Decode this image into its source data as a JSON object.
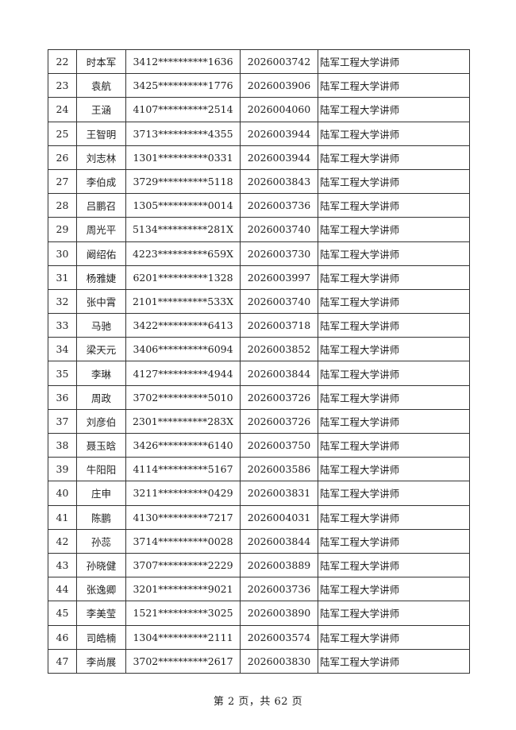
{
  "rows": [
    {
      "no": "22",
      "name": "时本军",
      "id": "3412**********1636",
      "code": "2026003742",
      "position": "陆军工程大学讲师"
    },
    {
      "no": "23",
      "name": "袁航",
      "id": "3425**********1776",
      "code": "2026003906",
      "position": "陆军工程大学讲师"
    },
    {
      "no": "24",
      "name": "王涵",
      "id": "4107**********2514",
      "code": "2026004060",
      "position": "陆军工程大学讲师"
    },
    {
      "no": "25",
      "name": "王智明",
      "id": "3713**********4355",
      "code": "2026003944",
      "position": "陆军工程大学讲师"
    },
    {
      "no": "26",
      "name": "刘志林",
      "id": "1301**********0331",
      "code": "2026003944",
      "position": "陆军工程大学讲师"
    },
    {
      "no": "27",
      "name": "李伯成",
      "id": "3729**********5118",
      "code": "2026003843",
      "position": "陆军工程大学讲师"
    },
    {
      "no": "28",
      "name": "吕鹏召",
      "id": "1305**********0014",
      "code": "2026003736",
      "position": "陆军工程大学讲师"
    },
    {
      "no": "29",
      "name": "周光平",
      "id": "5134**********281X",
      "code": "2026003740",
      "position": "陆军工程大学讲师"
    },
    {
      "no": "30",
      "name": "阚绍佑",
      "id": "4223**********659X",
      "code": "2026003730",
      "position": "陆军工程大学讲师"
    },
    {
      "no": "31",
      "name": "杨雅婕",
      "id": "6201**********1328",
      "code": "2026003997",
      "position": "陆军工程大学讲师"
    },
    {
      "no": "32",
      "name": "张中霄",
      "id": "2101**********533X",
      "code": "2026003740",
      "position": "陆军工程大学讲师"
    },
    {
      "no": "33",
      "name": "马驰",
      "id": "3422**********6413",
      "code": "2026003718",
      "position": "陆军工程大学讲师"
    },
    {
      "no": "34",
      "name": "梁天元",
      "id": "3406**********6094",
      "code": "2026003852",
      "position": "陆军工程大学讲师"
    },
    {
      "no": "35",
      "name": "李琳",
      "id": "4127**********4944",
      "code": "2026003844",
      "position": "陆军工程大学讲师"
    },
    {
      "no": "36",
      "name": "周政",
      "id": "3702**********5010",
      "code": "2026003726",
      "position": "陆军工程大学讲师"
    },
    {
      "no": "37",
      "name": "刘彦伯",
      "id": "2301**********283X",
      "code": "2026003726",
      "position": "陆军工程大学讲师"
    },
    {
      "no": "38",
      "name": "聂玉晗",
      "id": "3426**********6140",
      "code": "2026003750",
      "position": "陆军工程大学讲师"
    },
    {
      "no": "39",
      "name": "牛阳阳",
      "id": "4114**********5167",
      "code": "2026003586",
      "position": "陆军工程大学讲师"
    },
    {
      "no": "40",
      "name": "庄申",
      "id": "3211**********0429",
      "code": "2026003831",
      "position": "陆军工程大学讲师"
    },
    {
      "no": "41",
      "name": "陈鹏",
      "id": "4130**********7217",
      "code": "2026004031",
      "position": "陆军工程大学讲师"
    },
    {
      "no": "42",
      "name": "孙蕊",
      "id": "3714**********0028",
      "code": "2026003844",
      "position": "陆军工程大学讲师"
    },
    {
      "no": "43",
      "name": "孙晓健",
      "id": "3707**********2229",
      "code": "2026003889",
      "position": "陆军工程大学讲师"
    },
    {
      "no": "44",
      "name": "张逸卿",
      "id": "3201**********9021",
      "code": "2026003736",
      "position": "陆军工程大学讲师"
    },
    {
      "no": "45",
      "name": "李美莹",
      "id": "1521**********3025",
      "code": "2026003890",
      "position": "陆军工程大学讲师"
    },
    {
      "no": "46",
      "name": "司皓楠",
      "id": "1304**********2111",
      "code": "2026003574",
      "position": "陆军工程大学讲师"
    },
    {
      "no": "47",
      "name": "李尚展",
      "id": "3702**********2617",
      "code": "2026003830",
      "position": "陆军工程大学讲师"
    }
  ],
  "footer": {
    "page_label": "第 2 页，共 62 页"
  }
}
